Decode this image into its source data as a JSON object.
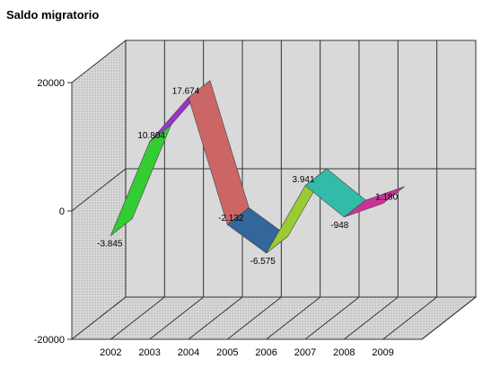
{
  "chart_data": {
    "type": "line",
    "style": "3d-ribbon",
    "title": "Saldo migratorio",
    "categories": [
      "2002",
      "2003",
      "2004",
      "2005",
      "2006",
      "2007",
      "2008",
      "2009"
    ],
    "series": [
      {
        "values": [
          -3845,
          10804,
          17674,
          -2132,
          -6575,
          3941,
          -948,
          1180
        ]
      }
    ],
    "data_labels": [
      "-3.845",
      "10.804",
      "17.674",
      "-2.132",
      "-6.575",
      "3.941",
      "-948",
      "1.180"
    ],
    "y_ticks": [
      "20000",
      "0",
      "-20000"
    ],
    "ylim": [
      -20000,
      20000
    ],
    "grid": true,
    "segment_colors": [
      "#33cc33",
      "#9933cc",
      "#cc6666",
      "#336699",
      "#99cc33",
      "#33bbaa",
      "#cc3399"
    ],
    "wall_color": "#d9d9d9",
    "floor_color": "#d9d9d9"
  }
}
